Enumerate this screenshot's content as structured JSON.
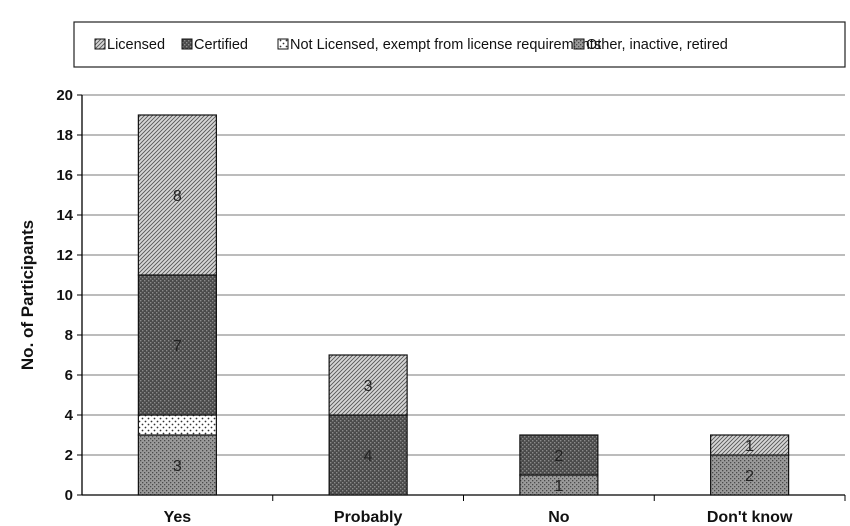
{
  "chart_data": {
    "type": "bar",
    "stacked": true,
    "categories": [
      "Yes",
      "Probably",
      "No",
      "Don't know"
    ],
    "series": [
      {
        "name": "Other, inactive, retired",
        "values": [
          3,
          0,
          1,
          2
        ],
        "pattern": "dots-dark",
        "color": "#8c8c8c"
      },
      {
        "name": "Not Licensed, exempt from license requirements",
        "values": [
          1,
          0,
          0,
          0
        ],
        "pattern": "dots-light",
        "color": "#ffffff"
      },
      {
        "name": "Certified",
        "values": [
          7,
          4,
          2,
          0
        ],
        "pattern": "checker-dark",
        "color": "#5a5a5a"
      },
      {
        "name": "Licensed",
        "values": [
          8,
          3,
          0,
          1
        ],
        "pattern": "diagonal",
        "color": "#bdbdbd"
      }
    ],
    "legend_order": [
      3,
      2,
      1,
      0
    ],
    "data_labels": {
      "0": [
        "3",
        "",
        "1",
        "2"
      ],
      "1": [
        "",
        "",
        "",
        ""
      ],
      "2": [
        "7",
        "4",
        "2",
        ""
      ],
      "3": [
        "8",
        "3",
        "",
        "1"
      ]
    },
    "ylabel": "No. of Participants",
    "xlabel": "",
    "title": "",
    "ylim": [
      0,
      20
    ],
    "yticks": [
      0,
      2,
      4,
      6,
      8,
      10,
      12,
      14,
      16,
      18,
      20
    ],
    "grid": true,
    "legend_position": "top"
  }
}
